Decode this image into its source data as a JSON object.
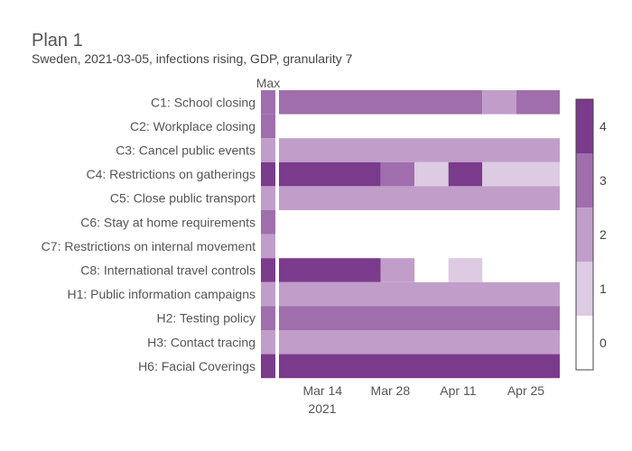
{
  "chart_data": {
    "type": "heatmap",
    "title": "Plan 1",
    "subtitle": "Sweden, 2021-03-05, infections rising, GDP, granularity 7",
    "max_column_label": "Max",
    "x_tick_labels": [
      "Mar 14",
      "Mar 28",
      "Apr 11",
      "Apr 25"
    ],
    "x_tick_sublabel": "2021",
    "x_tick_dates": [
      "2021-03-14",
      "2021-03-28",
      "2021-04-11",
      "2021-04-25"
    ],
    "x_range": [
      "2021-03-05",
      "2021-05-02"
    ],
    "colorscale": {
      "min": 0,
      "max": 4,
      "ticks": [
        0,
        1,
        2,
        3,
        4
      ],
      "colors": [
        "#ffffff",
        "#dccbe3",
        "#c09ec9",
        "#a06ead",
        "#7b3b8c"
      ]
    },
    "rows": [
      {
        "label": "C1: School closing",
        "max": 3,
        "segments": [
          {
            "start": "2021-03-05",
            "end": "2021-04-16",
            "value": 3
          },
          {
            "start": "2021-04-16",
            "end": "2021-04-23",
            "value": 2
          },
          {
            "start": "2021-04-23",
            "end": "2021-05-05",
            "value": 3
          }
        ]
      },
      {
        "label": "C2: Workplace closing",
        "max": 3,
        "segments": []
      },
      {
        "label": "C3: Cancel public events",
        "max": 2,
        "segments": [
          {
            "start": "2021-03-05",
            "end": "2021-05-05",
            "value": 2
          }
        ]
      },
      {
        "label": "C4: Restrictions on gatherings",
        "max": 4,
        "segments": [
          {
            "start": "2021-03-05",
            "end": "2021-03-26",
            "value": 4
          },
          {
            "start": "2021-03-26",
            "end": "2021-04-02",
            "value": 3
          },
          {
            "start": "2021-04-02",
            "end": "2021-04-09",
            "value": 1
          },
          {
            "start": "2021-04-09",
            "end": "2021-04-16",
            "value": 4
          },
          {
            "start": "2021-04-16",
            "end": "2021-05-05",
            "value": 1
          }
        ]
      },
      {
        "label": "C5: Close public transport",
        "max": 2,
        "segments": [
          {
            "start": "2021-03-05",
            "end": "2021-05-05",
            "value": 2
          }
        ]
      },
      {
        "label": "C6: Stay at home requirements",
        "max": 3,
        "segments": []
      },
      {
        "label": "C7: Restrictions on internal movement",
        "max": 2,
        "segments": []
      },
      {
        "label": "C8: International travel controls",
        "max": 4,
        "segments": [
          {
            "start": "2021-03-05",
            "end": "2021-03-26",
            "value": 4
          },
          {
            "start": "2021-03-26",
            "end": "2021-04-02",
            "value": 2
          },
          {
            "start": "2021-04-09",
            "end": "2021-04-16",
            "value": 1
          }
        ]
      },
      {
        "label": "H1: Public information campaigns",
        "max": 2,
        "segments": [
          {
            "start": "2021-03-05",
            "end": "2021-05-05",
            "value": 2
          }
        ]
      },
      {
        "label": "H2: Testing policy",
        "max": 3,
        "segments": [
          {
            "start": "2021-03-05",
            "end": "2021-05-05",
            "value": 3
          }
        ]
      },
      {
        "label": "H3: Contact tracing",
        "max": 2,
        "segments": [
          {
            "start": "2021-03-05",
            "end": "2021-05-05",
            "value": 2
          }
        ]
      },
      {
        "label": "H6: Facial Coverings",
        "max": 4,
        "segments": [
          {
            "start": "2021-03-05",
            "end": "2021-05-05",
            "value": 4
          }
        ]
      }
    ]
  }
}
